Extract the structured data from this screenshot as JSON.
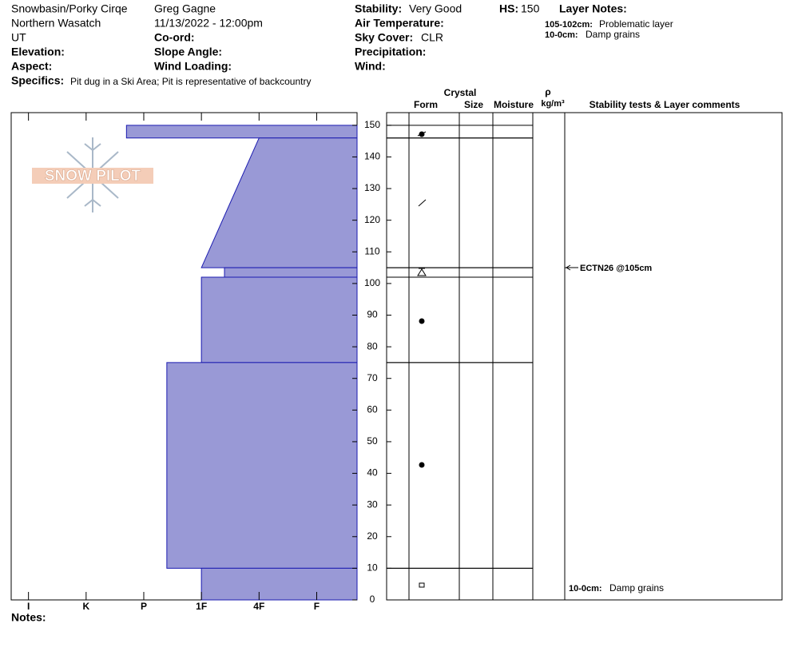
{
  "header": {
    "site": [
      "Snowbasin/Porky Cirqe",
      "Northern Wasatch",
      "UT"
    ],
    "observer": [
      "Greg Gagne",
      "11/13/2022 - 12:00pm"
    ],
    "labels": {
      "elevation": "Elevation:",
      "aspect": "Aspect:",
      "coord": "Co-ord:",
      "slope": "Slope Angle:",
      "wind_loading": "Wind Loading:",
      "air_temp": "Air Temperature:",
      "precip": "Precipitation:",
      "wind": "Wind:"
    },
    "stability": {
      "label": "Stability:",
      "value": "Very Good"
    },
    "hs": {
      "label": "HS:",
      "value": 150
    },
    "sky": {
      "label": "Sky Cover:",
      "value": "CLR"
    },
    "layer_notes": {
      "title": "Layer Notes:",
      "items": [
        {
          "depth": "105-102cm:",
          "text": "Problematic layer"
        },
        {
          "depth": "10-0cm:",
          "text": "Damp grains"
        }
      ]
    },
    "specifics": {
      "label": "Specifics:",
      "text": "Pit dug in a Ski Area; Pit is representative of backcountry"
    }
  },
  "logo": "SNOW PILOT",
  "notes_label": "Notes:",
  "table_headers": {
    "crystal": "Crystal",
    "form": "Form",
    "size": "Size",
    "moisture": "Moisture",
    "rho": "ρ",
    "density_unit": "kg/m³",
    "comments": "Stability tests & Layer comments"
  },
  "tests": [
    {
      "text": "ECTN26 @105cm",
      "depth": 105
    }
  ],
  "chart_data": {
    "type": "hardness-profile",
    "ylim": [
      0,
      154
    ],
    "yticks": [
      0,
      10,
      20,
      30,
      40,
      50,
      60,
      70,
      80,
      90,
      100,
      110,
      120,
      130,
      140,
      150
    ],
    "xlim": [
      0.3,
      6.3
    ],
    "xticks": [
      {
        "value": 6,
        "label": "I"
      },
      {
        "value": 5,
        "label": "K"
      },
      {
        "value": 4,
        "label": "P"
      },
      {
        "value": 3,
        "label": "1F"
      },
      {
        "value": 2,
        "label": "4F"
      },
      {
        "value": 1,
        "label": "F"
      }
    ],
    "color": "#9999d6",
    "layers": [
      {
        "top": 150,
        "bottom": 146,
        "hardness_top": 4.3,
        "hardness_bottom": 4.3
      },
      {
        "top": 146,
        "bottom": 105,
        "hardness_top": 2,
        "hardness_bottom": 3
      },
      {
        "top": 105,
        "bottom": 102,
        "hardness_top": 2.6,
        "hardness_bottom": 2.6
      },
      {
        "top": 102,
        "bottom": 75,
        "hardness_top": 3,
        "hardness_bottom": 3
      },
      {
        "top": 75,
        "bottom": 10,
        "hardness_top": 3.6,
        "hardness_bottom": 3.6
      },
      {
        "top": 10,
        "bottom": 0,
        "hardness_top": 3,
        "hardness_bottom": 3
      }
    ]
  }
}
